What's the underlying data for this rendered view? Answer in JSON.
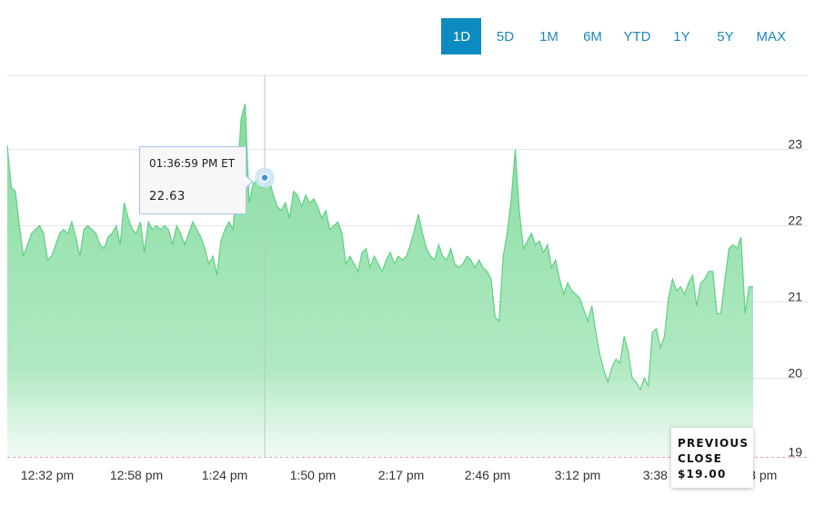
{
  "range_tabs": [
    {
      "label": "1D",
      "active": true
    },
    {
      "label": "5D",
      "active": false
    },
    {
      "label": "1M",
      "active": false
    },
    {
      "label": "6M",
      "active": false
    },
    {
      "label": "YTD",
      "active": false
    },
    {
      "label": "1Y",
      "active": false
    },
    {
      "label": "5Y",
      "active": false
    },
    {
      "label": "MAX",
      "active": false
    }
  ],
  "tooltip": {
    "time": "01:36:59 PM ET",
    "value": "22.63"
  },
  "previous_close": {
    "line1": "PREVIOUS",
    "line2": "CLOSE",
    "value": "$19.00"
  },
  "colors": {
    "accent": "#0b8bc0",
    "area": "#7dd99a",
    "line": "#5fcf83",
    "previous_close_line": "#e6a3a3"
  },
  "chart_data": {
    "type": "area",
    "x_tick_labels": [
      "12:32 pm",
      "12:58 pm",
      "1:24 pm",
      "1:50 pm",
      "2:17 pm",
      "2:46 pm",
      "3:12 pm",
      "3:38 pm",
      "4:03 pm"
    ],
    "y_ticks": [
      19,
      20,
      21,
      22,
      23
    ],
    "ylim": [
      19,
      24
    ],
    "previous_close": 19.0,
    "grid": true,
    "hover": {
      "time": "01:36:59 PM ET",
      "value": 22.63
    },
    "series": [
      {
        "values": [
          23.05,
          22.5,
          22.45,
          22.0,
          21.6,
          21.75,
          21.9,
          21.95,
          22.0,
          21.9,
          21.55,
          21.6,
          21.75,
          21.9,
          21.95,
          21.9,
          22.05,
          21.85,
          21.6,
          21.95,
          22.0,
          21.95,
          21.9,
          21.75,
          21.7,
          21.85,
          21.9,
          22.0,
          21.75,
          22.3,
          22.1,
          21.95,
          21.9,
          22.05,
          21.65,
          22.05,
          21.95,
          22.0,
          21.95,
          22.0,
          21.95,
          21.75,
          22.0,
          21.9,
          21.75,
          21.9,
          22.05,
          21.95,
          21.85,
          21.7,
          21.5,
          21.6,
          21.35,
          21.8,
          21.95,
          22.05,
          21.95,
          22.6,
          23.4,
          23.6,
          22.3,
          22.55,
          22.6,
          22.5,
          22.5,
          22.6,
          22.4,
          22.25,
          22.2,
          22.3,
          22.1,
          22.45,
          22.4,
          22.25,
          22.4,
          22.3,
          22.35,
          22.25,
          22.1,
          22.2,
          21.95,
          22.0,
          22.05,
          21.9,
          21.5,
          21.6,
          21.5,
          21.4,
          21.65,
          21.7,
          21.45,
          21.6,
          21.5,
          21.4,
          21.55,
          21.65,
          21.5,
          21.6,
          21.55,
          21.6,
          21.75,
          21.95,
          22.15,
          21.9,
          21.7,
          21.6,
          21.55,
          21.75,
          21.6,
          21.55,
          21.7,
          21.5,
          21.45,
          21.5,
          21.6,
          21.55,
          21.45,
          21.55,
          21.45,
          21.4,
          21.3,
          20.8,
          20.75,
          21.6,
          21.9,
          22.35,
          23.0,
          22.2,
          21.7,
          21.8,
          21.9,
          21.75,
          21.8,
          21.65,
          21.75,
          21.45,
          21.55,
          21.3,
          21.1,
          21.25,
          21.15,
          21.1,
          21.05,
          20.9,
          20.75,
          20.95,
          20.6,
          20.3,
          20.1,
          19.95,
          20.15,
          20.25,
          20.2,
          20.55,
          20.35,
          20.0,
          19.95,
          19.85,
          20.0,
          19.9,
          20.6,
          20.65,
          20.4,
          20.55,
          21.05,
          21.3,
          21.15,
          21.2,
          21.1,
          21.25,
          21.35,
          20.95,
          21.25,
          21.3,
          21.4,
          21.4,
          20.85,
          20.85,
          21.3,
          21.7,
          21.75,
          21.7,
          21.85,
          20.85,
          21.2,
          21.2
        ]
      }
    ]
  }
}
